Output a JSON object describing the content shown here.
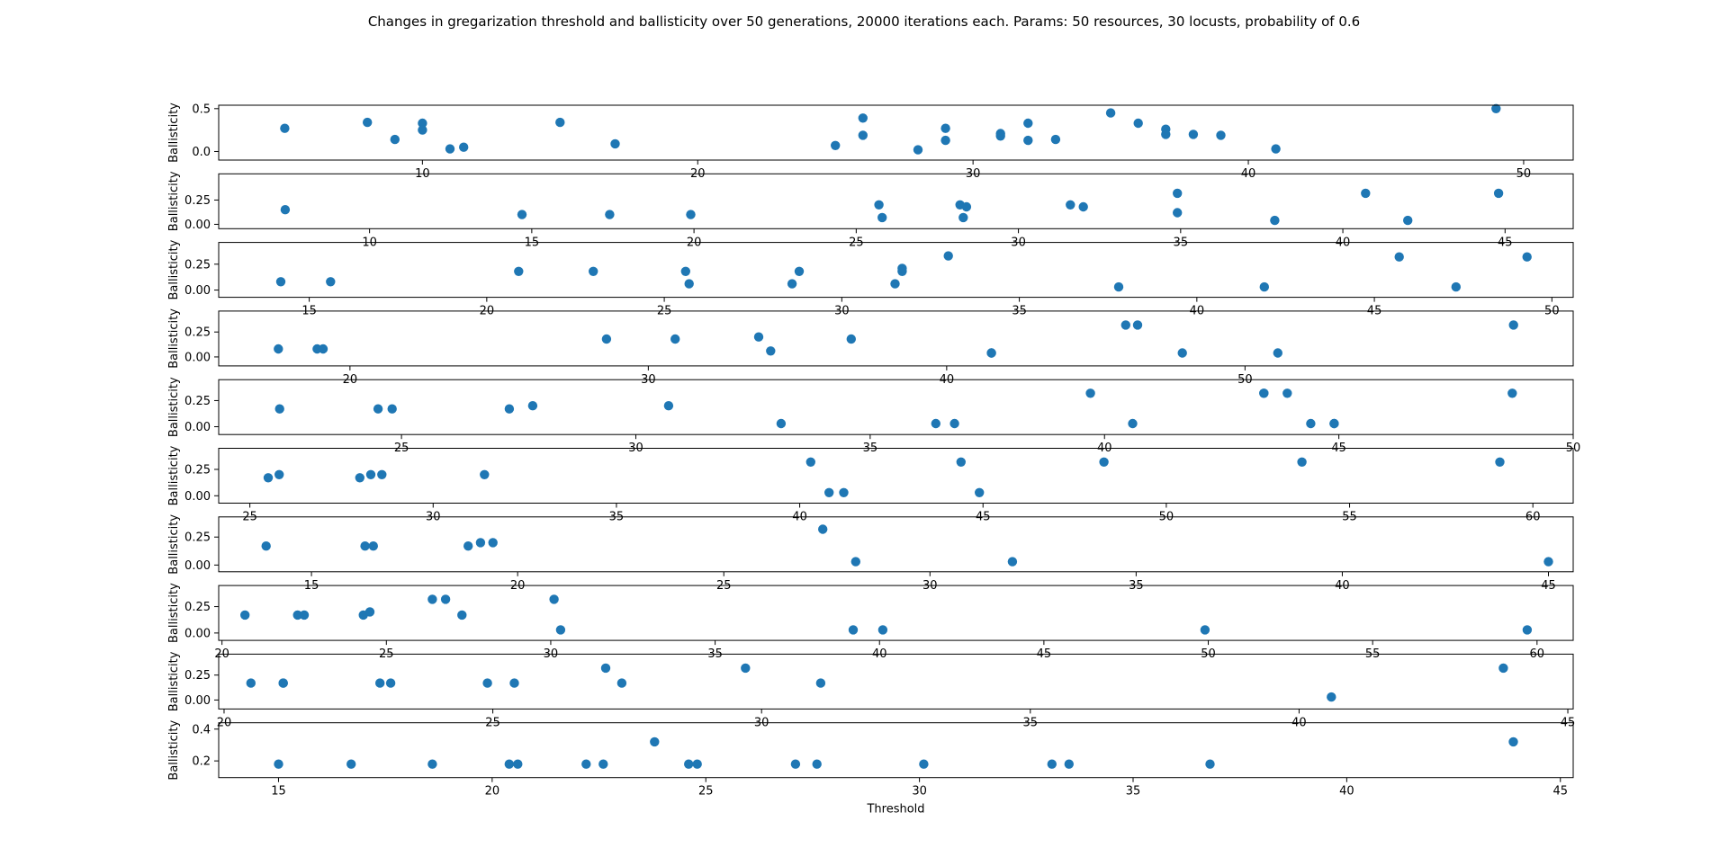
{
  "figure": {
    "title": "Changes in gregarization threshold and ballisticity over 50 generations, 20000 iterations each. Params: 50 resources, 30 locusts, probability of 0.6"
  },
  "colors": {
    "marker": "#1f77b4",
    "axis": "#000000"
  },
  "chart_data": [
    {
      "type": "scatter",
      "xlabel": "",
      "ylabel": "Ballisticity",
      "xlim": [
        2.6,
        51.8
      ],
      "ylim": [
        -0.1,
        0.54
      ],
      "xticks": [
        10,
        20,
        30,
        40,
        50
      ],
      "yticks": [
        0.0,
        0.5
      ],
      "x": [
        5,
        8,
        9,
        10,
        11,
        10,
        11.5,
        15,
        17,
        25,
        26,
        26,
        28,
        29,
        29,
        31,
        31,
        32,
        32,
        33,
        35,
        36,
        37,
        37,
        38,
        39,
        41,
        49
      ],
      "y": [
        0.27,
        0.34,
        0.14,
        0.33,
        0.03,
        0.25,
        0.05,
        0.34,
        0.09,
        0.07,
        0.39,
        0.19,
        0.02,
        0.27,
        0.13,
        0.21,
        0.18,
        0.33,
        0.13,
        0.14,
        0.45,
        0.33,
        0.26,
        0.2,
        0.2,
        0.19,
        0.03,
        0.5
      ]
    },
    {
      "type": "scatter",
      "xlabel": "",
      "ylabel": "Ballisticity",
      "xlim": [
        5.35,
        47.1
      ],
      "ylim": [
        -0.045,
        0.52
      ],
      "xticks": [
        10,
        15,
        20,
        25,
        30,
        35,
        40,
        45
      ],
      "yticks": [
        0.0,
        0.25
      ],
      "x": [
        7.4,
        14.7,
        17.4,
        19.9,
        25.7,
        25.8,
        28.2,
        28.3,
        28.4,
        31.6,
        32,
        34.9,
        34.9,
        37.9,
        40.7,
        42,
        44.8
      ],
      "y": [
        0.15,
        0.1,
        0.1,
        0.1,
        0.2,
        0.07,
        0.2,
        0.07,
        0.18,
        0.2,
        0.18,
        0.32,
        0.12,
        0.04,
        0.32,
        0.04,
        0.32
      ]
    },
    {
      "type": "scatter",
      "xlabel": "",
      "ylabel": "Ballisticity",
      "xlim": [
        12.45,
        50.6
      ],
      "ylim": [
        -0.07,
        0.46
      ],
      "xticks": [
        15,
        20,
        25,
        30,
        35,
        40,
        45,
        50
      ],
      "yticks": [
        0.0,
        0.25
      ],
      "x": [
        14.2,
        15.6,
        20.9,
        23,
        25.6,
        25.7,
        28.6,
        28.8,
        31.5,
        31.7,
        31.7,
        33,
        37.8,
        41.9,
        45.7,
        47.3,
        49.3
      ],
      "y": [
        0.08,
        0.08,
        0.18,
        0.18,
        0.18,
        0.06,
        0.06,
        0.18,
        0.06,
        0.18,
        0.21,
        0.33,
        0.03,
        0.03,
        0.32,
        0.03,
        0.32
      ]
    },
    {
      "type": "scatter",
      "xlabel": "",
      "ylabel": "Ballisticity",
      "xlim": [
        15.6,
        61
      ],
      "ylim": [
        -0.09,
        0.46
      ],
      "xticks": [
        20,
        30,
        40,
        50
      ],
      "yticks": [
        0.0,
        0.25
      ],
      "x": [
        17.6,
        18.9,
        19.1,
        28.6,
        30.9,
        33.7,
        34.1,
        36.8,
        41.5,
        41.5,
        46,
        46.4,
        47.9,
        51.1,
        59
      ],
      "y": [
        0.08,
        0.08,
        0.08,
        0.18,
        0.18,
        0.2,
        0.06,
        0.18,
        0.04,
        0.04,
        0.32,
        0.32,
        0.04,
        0.04,
        0.32
      ]
    },
    {
      "type": "scatter",
      "xlabel": "",
      "ylabel": "Ballisticity",
      "xlim": [
        21.1,
        50
      ],
      "ylim": [
        -0.075,
        0.45
      ],
      "xticks": [
        25,
        30,
        35,
        40,
        45,
        50
      ],
      "yticks": [
        0.0,
        0.25
      ],
      "x": [
        22.4,
        24.5,
        24.8,
        27.3,
        27.8,
        30.7,
        33.1,
        36.4,
        36.8,
        39.7,
        40.6,
        43.4,
        43.4,
        43.9,
        44.4,
        44.9,
        44.9,
        48.7
      ],
      "y": [
        0.17,
        0.17,
        0.17,
        0.17,
        0.2,
        0.2,
        0.03,
        0.03,
        0.03,
        0.32,
        0.03,
        0.32,
        0.32,
        0.32,
        0.03,
        0.03,
        0.03,
        0.32
      ]
    },
    {
      "type": "scatter",
      "xlabel": "",
      "ylabel": "Ballisticity",
      "xlim": [
        24.15,
        61.1
      ],
      "ylim": [
        -0.07,
        0.45
      ],
      "xticks": [
        25,
        30,
        35,
        40,
        45,
        50,
        55,
        60
      ],
      "yticks": [
        0.0,
        0.25
      ],
      "x": [
        25.5,
        25.8,
        28,
        28.3,
        28.6,
        31.4,
        40.3,
        40.8,
        41.2,
        44.4,
        44.9,
        48.3,
        53.7,
        59.1
      ],
      "y": [
        0.17,
        0.2,
        0.17,
        0.2,
        0.2,
        0.2,
        0.32,
        0.03,
        0.03,
        0.32,
        0.03,
        0.32,
        0.32,
        0.32
      ]
    },
    {
      "type": "scatter",
      "xlabel": "",
      "ylabel": "Ballisticity",
      "xlim": [
        12.75,
        45.6
      ],
      "ylim": [
        -0.06,
        0.43
      ],
      "xticks": [
        15,
        20,
        25,
        30,
        35,
        40,
        45
      ],
      "yticks": [
        0.0,
        0.25
      ],
      "x": [
        13.9,
        16.3,
        16.5,
        18.8,
        19.1,
        19.4,
        27.4,
        28.2,
        32,
        45
      ],
      "y": [
        0.17,
        0.17,
        0.17,
        0.17,
        0.2,
        0.2,
        0.32,
        0.03,
        0.03,
        0.03
      ]
    },
    {
      "type": "scatter",
      "xlabel": "",
      "ylabel": "Ballisticity",
      "xlim": [
        19.9,
        61.1
      ],
      "ylim": [
        -0.07,
        0.45
      ],
      "xticks": [
        20,
        25,
        30,
        35,
        40,
        45,
        50,
        55,
        60
      ],
      "yticks": [
        0.0,
        0.25
      ],
      "x": [
        20.7,
        22.3,
        22.5,
        24.3,
        24.5,
        26.4,
        26.8,
        27.3,
        30.1,
        30.3,
        39.2,
        40.1,
        49.9,
        59.7
      ],
      "y": [
        0.17,
        0.17,
        0.17,
        0.17,
        0.2,
        0.32,
        0.32,
        0.17,
        0.32,
        0.03,
        0.03,
        0.03,
        0.03,
        0.03
      ]
    },
    {
      "type": "scatter",
      "xlabel": "",
      "ylabel": "Ballisticity",
      "xlim": [
        19.9,
        45.1
      ],
      "ylim": [
        -0.09,
        0.46
      ],
      "xticks": [
        20,
        25,
        30,
        35,
        40,
        45
      ],
      "yticks": [
        0.0,
        0.25
      ],
      "x": [
        20.5,
        21.1,
        21.1,
        22.9,
        23.1,
        24.9,
        25.4,
        27.1,
        27.4,
        29.7,
        31.1,
        40.6,
        43.8
      ],
      "y": [
        0.17,
        0.17,
        0.17,
        0.17,
        0.17,
        0.17,
        0.17,
        0.32,
        0.17,
        0.32,
        0.17,
        0.03,
        0.32
      ]
    },
    {
      "type": "scatter",
      "xlabel": "Threshold",
      "ylabel": "Ballisticity",
      "xlim": [
        13.6,
        45.3
      ],
      "ylim": [
        0.095,
        0.44
      ],
      "xticks": [
        15,
        20,
        25,
        30,
        35,
        40,
        45
      ],
      "yticks": [
        0.2,
        0.4
      ],
      "x": [
        15,
        16.7,
        18.6,
        20.4,
        20.6,
        22.2,
        22.6,
        23.8,
        24.6,
        24.8,
        27.1,
        27.6,
        30.1,
        33.1,
        33.5,
        36.8,
        43.9
      ],
      "y": [
        0.18,
        0.18,
        0.18,
        0.18,
        0.18,
        0.18,
        0.18,
        0.32,
        0.18,
        0.18,
        0.18,
        0.18,
        0.18,
        0.18,
        0.18,
        0.18,
        0.32
      ]
    }
  ]
}
